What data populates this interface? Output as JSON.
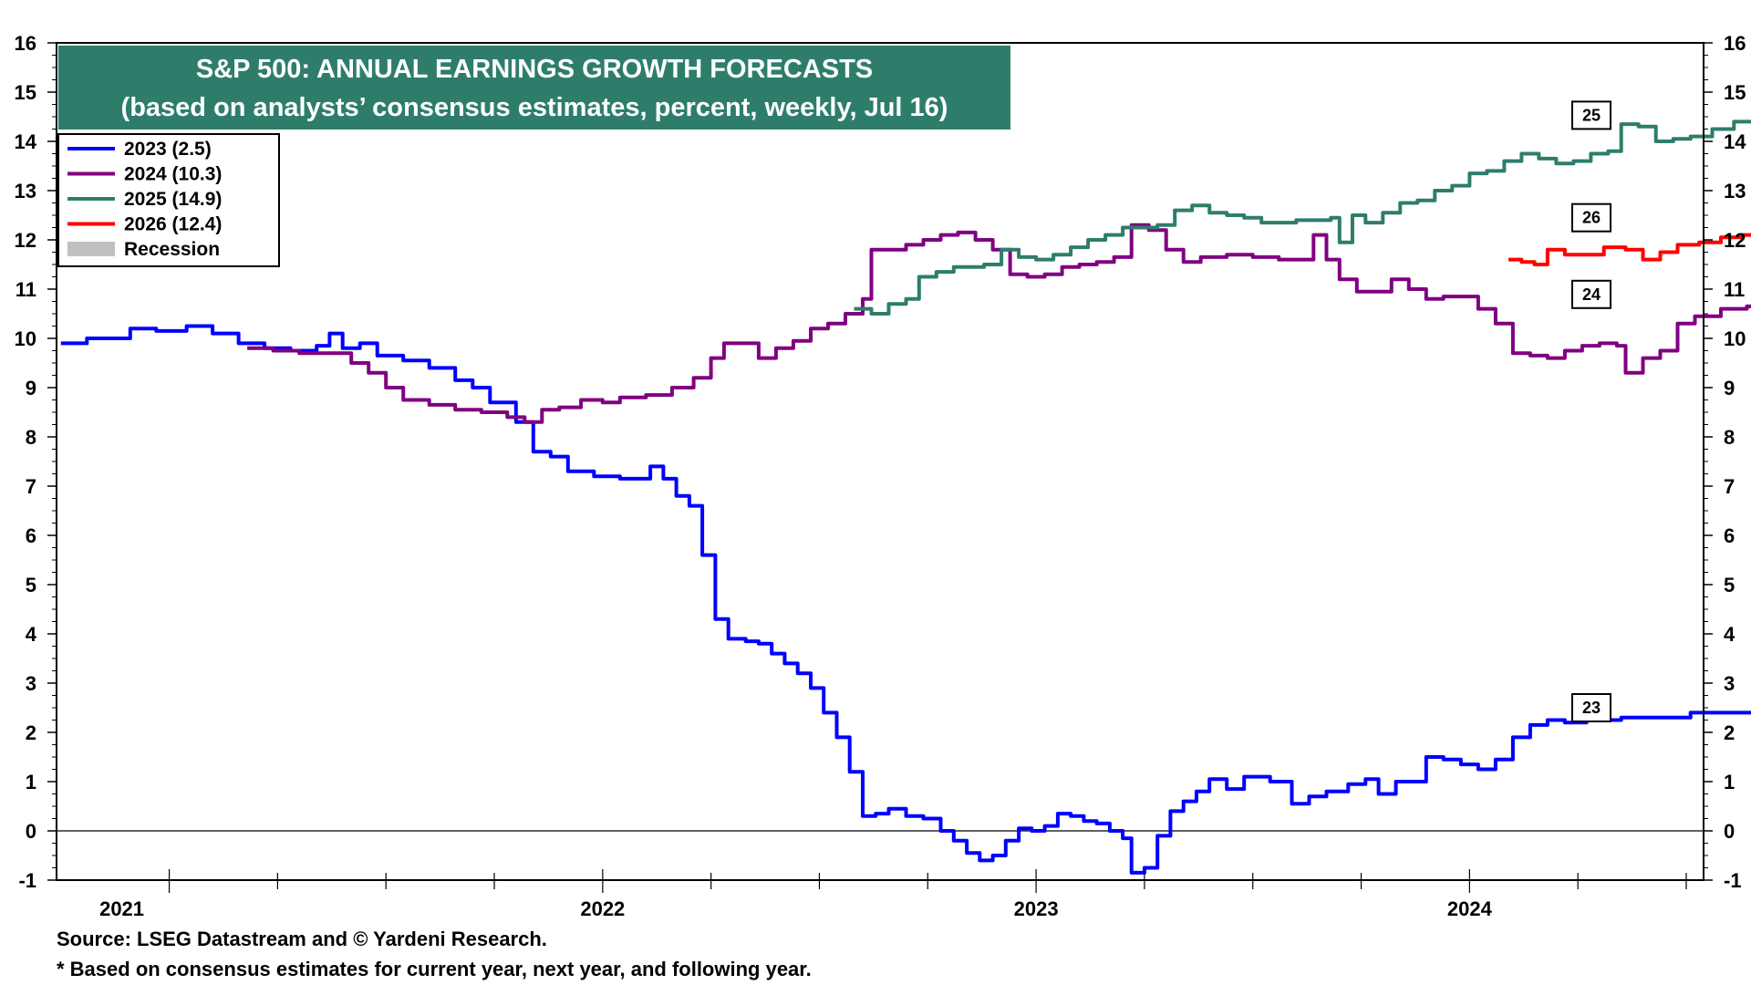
{
  "chart_data": {
    "type": "line",
    "title": "S&P 500: ANNUAL EARNINGS GROWTH FORECASTS",
    "subtitle": "(based on analysts’ consensus estimates, percent, weekly, Jul 16)",
    "xlabel": "",
    "ylabel": "",
    "ylim": [
      -1,
      16
    ],
    "yticks": [
      -1,
      0,
      1,
      2,
      3,
      4,
      5,
      6,
      7,
      8,
      9,
      10,
      11,
      12,
      13,
      14,
      15,
      16
    ],
    "xlim": [
      2020.74,
      2024.54
    ],
    "xticks": [
      {
        "label": "2021",
        "x": 2021.0
      },
      {
        "label": "2022",
        "x": 2022.0
      },
      {
        "label": "2023",
        "x": 2023.0
      },
      {
        "label": "2024",
        "x": 2024.0
      }
    ],
    "grid": false,
    "zero_line": true,
    "legend_placement": "top-left",
    "legend": [
      {
        "label": "2023 (2.5)",
        "color": "#0000ff"
      },
      {
        "label": "2024 (10.3)",
        "color": "#800080"
      },
      {
        "label": "2025 (14.9)",
        "color": "#2e7d6b"
      },
      {
        "label": "2026 (12.4)",
        "color": "#ff0000"
      },
      {
        "label": "Recession",
        "color": "#c0c0c0"
      }
    ],
    "series": [
      {
        "name": "2023",
        "color": "#0000ff",
        "end_label": "23",
        "points": [
          [
            2020.75,
            9.9
          ],
          [
            2020.81,
            10.0
          ],
          [
            2020.87,
            10.0
          ],
          [
            2020.91,
            10.2
          ],
          [
            2020.97,
            10.15
          ],
          [
            2021.04,
            10.25
          ],
          [
            2021.1,
            10.1
          ],
          [
            2021.16,
            9.9
          ],
          [
            2021.22,
            9.8
          ],
          [
            2021.28,
            9.75
          ],
          [
            2021.34,
            9.85
          ],
          [
            2021.37,
            10.1
          ],
          [
            2021.4,
            9.8
          ],
          [
            2021.44,
            9.9
          ],
          [
            2021.48,
            9.65
          ],
          [
            2021.54,
            9.55
          ],
          [
            2021.6,
            9.4
          ],
          [
            2021.66,
            9.15
          ],
          [
            2021.7,
            9.0
          ],
          [
            2021.74,
            8.7
          ],
          [
            2021.8,
            8.3
          ],
          [
            2021.84,
            7.7
          ],
          [
            2021.88,
            7.6
          ],
          [
            2021.92,
            7.3
          ],
          [
            2021.98,
            7.2
          ],
          [
            2022.04,
            7.15
          ],
          [
            2022.08,
            7.15
          ],
          [
            2022.11,
            7.4
          ],
          [
            2022.14,
            7.15
          ],
          [
            2022.17,
            6.8
          ],
          [
            2022.2,
            6.6
          ],
          [
            2022.23,
            5.6
          ],
          [
            2022.26,
            4.3
          ],
          [
            2022.29,
            3.9
          ],
          [
            2022.33,
            3.85
          ],
          [
            2022.36,
            3.8
          ],
          [
            2022.39,
            3.6
          ],
          [
            2022.42,
            3.4
          ],
          [
            2022.45,
            3.2
          ],
          [
            2022.48,
            2.9
          ],
          [
            2022.51,
            2.4
          ],
          [
            2022.54,
            1.9
          ],
          [
            2022.57,
            1.2
          ],
          [
            2022.6,
            0.3
          ],
          [
            2022.63,
            0.35
          ],
          [
            2022.66,
            0.45
          ],
          [
            2022.7,
            0.3
          ],
          [
            2022.74,
            0.25
          ],
          [
            2022.78,
            0.0
          ],
          [
            2022.81,
            -0.2
          ],
          [
            2022.84,
            -0.45
          ],
          [
            2022.87,
            -0.6
          ],
          [
            2022.9,
            -0.5
          ],
          [
            2022.93,
            -0.2
          ],
          [
            2022.96,
            0.05
          ],
          [
            2022.99,
            0.0
          ],
          [
            2023.02,
            0.1
          ],
          [
            2023.05,
            0.35
          ],
          [
            2023.08,
            0.3
          ],
          [
            2023.11,
            0.2
          ],
          [
            2023.14,
            0.15
          ],
          [
            2023.17,
            0.0
          ],
          [
            2023.2,
            -0.15
          ],
          [
            2023.22,
            -0.85
          ],
          [
            2023.25,
            -0.75
          ],
          [
            2023.28,
            -0.1
          ],
          [
            2023.31,
            0.4
          ],
          [
            2023.34,
            0.6
          ],
          [
            2023.37,
            0.8
          ],
          [
            2023.4,
            1.05
          ],
          [
            2023.44,
            0.85
          ],
          [
            2023.48,
            1.1
          ],
          [
            2023.54,
            1.0
          ],
          [
            2023.59,
            0.55
          ],
          [
            2023.63,
            0.7
          ],
          [
            2023.67,
            0.8
          ],
          [
            2023.72,
            0.95
          ],
          [
            2023.76,
            1.05
          ],
          [
            2023.79,
            0.75
          ],
          [
            2023.83,
            1.0
          ],
          [
            2023.86,
            1.0
          ],
          [
            2023.9,
            1.5
          ],
          [
            2023.94,
            1.45
          ],
          [
            2023.98,
            1.35
          ],
          [
            2024.02,
            1.25
          ],
          [
            2024.06,
            1.45
          ],
          [
            2024.1,
            1.9
          ],
          [
            2024.14,
            2.15
          ],
          [
            2024.18,
            2.25
          ],
          [
            2024.22,
            2.2
          ],
          [
            2024.27,
            2.25
          ],
          [
            2024.35,
            2.3
          ],
          [
            2024.43,
            2.3
          ],
          [
            2024.51,
            2.4
          ],
          [
            2024.59,
            2.4
          ],
          [
            2024.67,
            2.45
          ],
          [
            2024.75,
            2.5
          ],
          [
            2024.8,
            2.5
          ]
        ]
      },
      {
        "name": "2024",
        "color": "#800080",
        "end_label": "24",
        "points": [
          [
            2021.18,
            9.8
          ],
          [
            2021.24,
            9.75
          ],
          [
            2021.3,
            9.7
          ],
          [
            2021.36,
            9.7
          ],
          [
            2021.42,
            9.5
          ],
          [
            2021.46,
            9.3
          ],
          [
            2021.5,
            9.0
          ],
          [
            2021.54,
            8.75
          ],
          [
            2021.6,
            8.65
          ],
          [
            2021.66,
            8.55
          ],
          [
            2021.72,
            8.5
          ],
          [
            2021.78,
            8.4
          ],
          [
            2021.82,
            8.3
          ],
          [
            2021.86,
            8.55
          ],
          [
            2021.9,
            8.6
          ],
          [
            2021.95,
            8.75
          ],
          [
            2022.0,
            8.7
          ],
          [
            2022.04,
            8.8
          ],
          [
            2022.1,
            8.85
          ],
          [
            2022.16,
            9.0
          ],
          [
            2022.21,
            9.2
          ],
          [
            2022.25,
            9.6
          ],
          [
            2022.28,
            9.9
          ],
          [
            2022.32,
            9.9
          ],
          [
            2022.36,
            9.6
          ],
          [
            2022.4,
            9.8
          ],
          [
            2022.44,
            9.95
          ],
          [
            2022.48,
            10.2
          ],
          [
            2022.52,
            10.3
          ],
          [
            2022.56,
            10.5
          ],
          [
            2022.6,
            10.8
          ],
          [
            2022.62,
            11.8
          ],
          [
            2022.66,
            11.8
          ],
          [
            2022.7,
            11.9
          ],
          [
            2022.74,
            12.0
          ],
          [
            2022.78,
            12.1
          ],
          [
            2022.82,
            12.15
          ],
          [
            2022.86,
            12.0
          ],
          [
            2022.9,
            11.8
          ],
          [
            2022.94,
            11.3
          ],
          [
            2022.98,
            11.25
          ],
          [
            2023.02,
            11.3
          ],
          [
            2023.06,
            11.45
          ],
          [
            2023.1,
            11.5
          ],
          [
            2023.14,
            11.55
          ],
          [
            2023.18,
            11.65
          ],
          [
            2023.22,
            12.3
          ],
          [
            2023.26,
            12.2
          ],
          [
            2023.3,
            11.8
          ],
          [
            2023.34,
            11.55
          ],
          [
            2023.38,
            11.65
          ],
          [
            2023.44,
            11.7
          ],
          [
            2023.5,
            11.65
          ],
          [
            2023.56,
            11.6
          ],
          [
            2023.61,
            11.6
          ],
          [
            2023.64,
            12.1
          ],
          [
            2023.67,
            11.6
          ],
          [
            2023.7,
            11.2
          ],
          [
            2023.74,
            10.95
          ],
          [
            2023.78,
            10.95
          ],
          [
            2023.82,
            11.2
          ],
          [
            2023.86,
            11.0
          ],
          [
            2023.9,
            10.8
          ],
          [
            2023.94,
            10.85
          ],
          [
            2023.98,
            10.85
          ],
          [
            2024.02,
            10.6
          ],
          [
            2024.06,
            10.3
          ],
          [
            2024.1,
            9.7
          ],
          [
            2024.14,
            9.65
          ],
          [
            2024.18,
            9.6
          ],
          [
            2024.22,
            9.75
          ],
          [
            2024.26,
            9.85
          ],
          [
            2024.3,
            9.9
          ],
          [
            2024.34,
            9.85
          ],
          [
            2024.36,
            9.3
          ],
          [
            2024.4,
            9.6
          ],
          [
            2024.44,
            9.75
          ],
          [
            2024.48,
            10.3
          ],
          [
            2024.52,
            10.45
          ],
          [
            2024.58,
            10.6
          ],
          [
            2024.64,
            10.65
          ],
          [
            2024.7,
            10.65
          ],
          [
            2024.74,
            10.6
          ],
          [
            2024.77,
            10.35
          ],
          [
            2024.8,
            10.3
          ]
        ]
      },
      {
        "name": "2025",
        "color": "#2e7d6b",
        "end_label": "25",
        "points": [
          [
            2022.58,
            10.6
          ],
          [
            2022.62,
            10.5
          ],
          [
            2022.66,
            10.7
          ],
          [
            2022.7,
            10.8
          ],
          [
            2022.73,
            11.25
          ],
          [
            2022.77,
            11.35
          ],
          [
            2022.81,
            11.45
          ],
          [
            2022.84,
            11.45
          ],
          [
            2022.88,
            11.5
          ],
          [
            2022.92,
            11.8
          ],
          [
            2022.96,
            11.65
          ],
          [
            2023.0,
            11.6
          ],
          [
            2023.04,
            11.7
          ],
          [
            2023.08,
            11.85
          ],
          [
            2023.12,
            12.0
          ],
          [
            2023.16,
            12.1
          ],
          [
            2023.2,
            12.25
          ],
          [
            2023.24,
            12.25
          ],
          [
            2023.28,
            12.3
          ],
          [
            2023.32,
            12.6
          ],
          [
            2023.36,
            12.7
          ],
          [
            2023.4,
            12.55
          ],
          [
            2023.44,
            12.5
          ],
          [
            2023.48,
            12.45
          ],
          [
            2023.52,
            12.35
          ],
          [
            2023.56,
            12.35
          ],
          [
            2023.6,
            12.4
          ],
          [
            2023.64,
            12.4
          ],
          [
            2023.68,
            12.45
          ],
          [
            2023.7,
            11.95
          ],
          [
            2023.73,
            12.5
          ],
          [
            2023.76,
            12.35
          ],
          [
            2023.8,
            12.55
          ],
          [
            2023.84,
            12.75
          ],
          [
            2023.88,
            12.8
          ],
          [
            2023.92,
            13.0
          ],
          [
            2023.96,
            13.1
          ],
          [
            2024.0,
            13.35
          ],
          [
            2024.04,
            13.4
          ],
          [
            2024.08,
            13.6
          ],
          [
            2024.12,
            13.75
          ],
          [
            2024.16,
            13.65
          ],
          [
            2024.2,
            13.55
          ],
          [
            2024.24,
            13.6
          ],
          [
            2024.28,
            13.75
          ],
          [
            2024.32,
            13.8
          ],
          [
            2024.35,
            14.35
          ],
          [
            2024.39,
            14.3
          ],
          [
            2024.43,
            14.0
          ],
          [
            2024.47,
            14.05
          ],
          [
            2024.51,
            14.1
          ],
          [
            2024.56,
            14.25
          ],
          [
            2024.61,
            14.4
          ],
          [
            2024.66,
            14.55
          ],
          [
            2024.71,
            14.6
          ],
          [
            2024.75,
            14.75
          ],
          [
            2024.78,
            14.85
          ],
          [
            2024.8,
            14.9
          ]
        ]
      },
      {
        "name": "2026",
        "color": "#ff0000",
        "end_label": "26",
        "points": [
          [
            2024.09,
            11.6
          ],
          [
            2024.12,
            11.55
          ],
          [
            2024.15,
            11.5
          ],
          [
            2024.18,
            11.8
          ],
          [
            2024.22,
            11.7
          ],
          [
            2024.26,
            11.7
          ],
          [
            2024.31,
            11.85
          ],
          [
            2024.36,
            11.8
          ],
          [
            2024.4,
            11.6
          ],
          [
            2024.44,
            11.75
          ],
          [
            2024.48,
            11.9
          ],
          [
            2024.53,
            11.95
          ],
          [
            2024.58,
            12.05
          ],
          [
            2024.63,
            12.1
          ],
          [
            2024.68,
            12.2
          ],
          [
            2024.73,
            12.3
          ],
          [
            2024.77,
            12.4
          ],
          [
            2024.8,
            12.45
          ]
        ]
      }
    ],
    "recessions": []
  },
  "footer": {
    "source": "Source: LSEG Datastream and © Yardeni Research.",
    "note": "* Based on consensus estimates for current year, next year, and following year."
  }
}
